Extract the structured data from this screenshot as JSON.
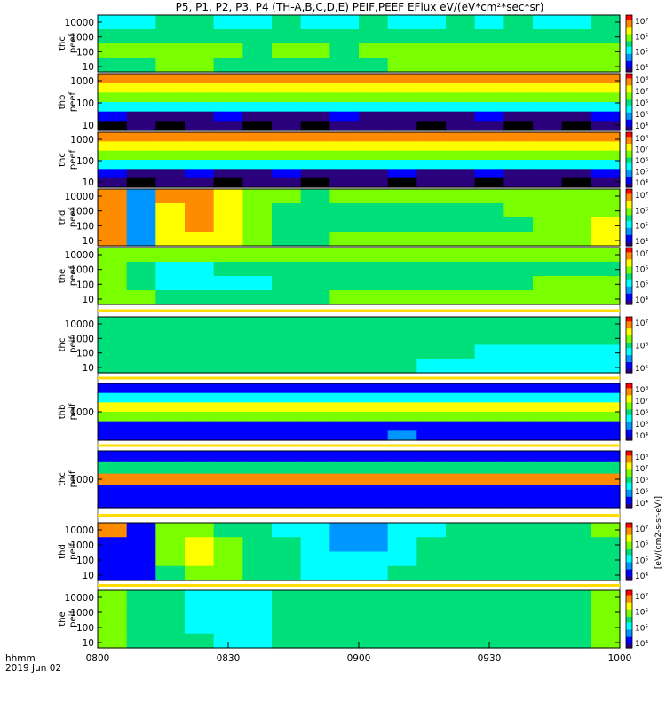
{
  "title": "P5, P1, P2, P3, P4 (TH-A,B,C,D,E) PEIF,PEEF EFlux eV/(eV*cm²*sec*sr)",
  "x_axis": {
    "time_label": "hhmm",
    "date_label": "2019 Jun 02",
    "tick_labels": [
      "0800",
      "0830",
      "0900",
      "0930",
      "1000"
    ]
  },
  "colorbar_unit_label": "[eV/(cm2-s-sr-eV)]",
  "chart_data": [
    {
      "type": "heatmap",
      "probe": "thc",
      "species": "peef",
      "ylabel": [
        "thc",
        "peef"
      ],
      "ytick_labels": [
        "10",
        "100",
        "1000",
        "10000"
      ],
      "colorbar_ticks": [
        "10⁴",
        "10⁵",
        "10⁶",
        "10⁷"
      ],
      "x_tick_labels": [
        "0800",
        "0830",
        "0900",
        "0930",
        "1000"
      ],
      "cells": [
        [
          4,
          4,
          5,
          5,
          4,
          4,
          5,
          4,
          4,
          5,
          4,
          4,
          5,
          4,
          5,
          4,
          4,
          5
        ],
        [
          5,
          5,
          5,
          5,
          5,
          5,
          5,
          5,
          5,
          5,
          5,
          5,
          5,
          5,
          5,
          5,
          5,
          5
        ],
        [
          6,
          6,
          6,
          6,
          6,
          5,
          6,
          6,
          5,
          6,
          6,
          6,
          6,
          6,
          6,
          6,
          6,
          6
        ],
        [
          5,
          5,
          6,
          6,
          5,
          5,
          5,
          5,
          5,
          5,
          6,
          6,
          6,
          6,
          6,
          6,
          6,
          6
        ]
      ]
    },
    {
      "type": "heatmap",
      "probe": "thb",
      "species": "peef",
      "ylabel": [
        "thb",
        "peef"
      ],
      "ytick_labels": [
        "10",
        "100",
        "1000"
      ],
      "colorbar_ticks": [
        "10⁴",
        "10⁵",
        "10⁶",
        "10⁷",
        "10⁸"
      ],
      "cells": [
        [
          8,
          8,
          8,
          8,
          8,
          8,
          8,
          8,
          8,
          8,
          8,
          8,
          8,
          8,
          8,
          8,
          8,
          8
        ],
        [
          7,
          7,
          7,
          7,
          7,
          7,
          7,
          7,
          7,
          7,
          7,
          7,
          7,
          7,
          7,
          7,
          7,
          7
        ],
        [
          6,
          6,
          6,
          6,
          6,
          6,
          6,
          6,
          6,
          6,
          6,
          6,
          6,
          6,
          6,
          6,
          6,
          6
        ],
        [
          4,
          4,
          4,
          4,
          4,
          4,
          4,
          4,
          4,
          4,
          4,
          4,
          4,
          4,
          4,
          4,
          4,
          4
        ],
        [
          2,
          1,
          1,
          1,
          2,
          1,
          1,
          1,
          2,
          1,
          1,
          1,
          1,
          2,
          1,
          1,
          1,
          2
        ],
        [
          0,
          1,
          0,
          1,
          1,
          0,
          1,
          0,
          1,
          1,
          1,
          0,
          1,
          1,
          0,
          1,
          0,
          1
        ]
      ]
    },
    {
      "type": "heatmap",
      "probe": "thc",
      "species": "peef",
      "ylabel": [
        "thc",
        "peef"
      ],
      "ytick_labels": [
        "10",
        "100",
        "1000"
      ],
      "colorbar_ticks": [
        "10⁴",
        "10⁵",
        "10⁶",
        "10⁷",
        "10⁸"
      ],
      "cells": [
        [
          8,
          8,
          8,
          8,
          8,
          8,
          8,
          8,
          8,
          8,
          8,
          8,
          8,
          8,
          8,
          8,
          8,
          8
        ],
        [
          7,
          7,
          7,
          7,
          7,
          7,
          7,
          7,
          7,
          7,
          7,
          7,
          7,
          7,
          7,
          7,
          7,
          7
        ],
        [
          6,
          6,
          6,
          6,
          6,
          6,
          6,
          6,
          6,
          6,
          6,
          6,
          6,
          6,
          6,
          6,
          6,
          6
        ],
        [
          4,
          4,
          4,
          4,
          4,
          4,
          4,
          4,
          4,
          4,
          4,
          4,
          4,
          4,
          4,
          4,
          4,
          4
        ],
        [
          2,
          1,
          1,
          2,
          1,
          1,
          2,
          1,
          1,
          1,
          2,
          1,
          1,
          2,
          1,
          1,
          1,
          2
        ],
        [
          1,
          0,
          1,
          1,
          0,
          1,
          1,
          0,
          1,
          1,
          0,
          1,
          1,
          0,
          1,
          1,
          0,
          1
        ]
      ]
    },
    {
      "type": "heatmap",
      "probe": "thd",
      "species": "peef",
      "ylabel": [
        "thd",
        "peef"
      ],
      "ytick_labels": [
        "10",
        "100",
        "1000",
        "10000"
      ],
      "colorbar_ticks": [
        "10⁴",
        "10⁵",
        "10⁶",
        "10⁷"
      ],
      "cells": [
        [
          8,
          3,
          8,
          8,
          7,
          6,
          6,
          5,
          6,
          6,
          6,
          6,
          6,
          6,
          6,
          6,
          6,
          6
        ],
        [
          8,
          3,
          7,
          8,
          7,
          6,
          5,
          5,
          5,
          5,
          5,
          5,
          5,
          5,
          6,
          6,
          6,
          6
        ],
        [
          8,
          3,
          7,
          8,
          7,
          6,
          5,
          5,
          5,
          5,
          5,
          5,
          5,
          5,
          5,
          6,
          6,
          7
        ],
        [
          8,
          3,
          7,
          7,
          7,
          6,
          5,
          5,
          6,
          6,
          6,
          6,
          6,
          6,
          6,
          6,
          6,
          7
        ]
      ]
    },
    {
      "type": "heatmap",
      "probe": "the",
      "species": "peef",
      "ylabel": [
        "the",
        "peef"
      ],
      "ytick_labels": [
        "10",
        "100",
        "1000",
        "10000"
      ],
      "colorbar_ticks": [
        "10⁴",
        "10⁵",
        "10⁶",
        "10⁷"
      ],
      "cells": [
        [
          6,
          6,
          6,
          6,
          6,
          6,
          6,
          6,
          6,
          6,
          6,
          6,
          6,
          6,
          6,
          6,
          6,
          6
        ],
        [
          6,
          5,
          4,
          4,
          5,
          5,
          5,
          5,
          5,
          5,
          5,
          5,
          5,
          5,
          5,
          5,
          5,
          5
        ],
        [
          6,
          5,
          4,
          4,
          4,
          4,
          5,
          5,
          5,
          5,
          5,
          5,
          5,
          5,
          5,
          6,
          6,
          6
        ],
        [
          6,
          6,
          5,
          5,
          5,
          5,
          5,
          5,
          6,
          6,
          6,
          6,
          6,
          6,
          6,
          6,
          6,
          6
        ]
      ]
    },
    {
      "type": "heatmap",
      "probe": "thc",
      "species": "peif",
      "ylabel": [
        "thc",
        "peif"
      ],
      "ytick_labels": [
        "10",
        "100",
        "1000",
        "10000"
      ],
      "colorbar_ticks": [
        "10⁵",
        "10⁶",
        "10⁷"
      ],
      "cells": [
        [
          5,
          5,
          5,
          5,
          5,
          5,
          5,
          5,
          5,
          5,
          5,
          5,
          5,
          5,
          5,
          5,
          5,
          5
        ],
        [
          5,
          5,
          5,
          5,
          5,
          5,
          5,
          5,
          5,
          5,
          5,
          5,
          5,
          5,
          5,
          5,
          5,
          5
        ],
        [
          5,
          5,
          5,
          5,
          5,
          5,
          5,
          5,
          5,
          5,
          5,
          5,
          5,
          4,
          4,
          4,
          4,
          4
        ],
        [
          5,
          5,
          5,
          5,
          5,
          5,
          5,
          5,
          5,
          5,
          5,
          4,
          4,
          4,
          4,
          4,
          4,
          4
        ]
      ]
    },
    {
      "type": "heatmap",
      "probe": "thb",
      "species": "peif",
      "ylabel": [
        "thb",
        "peif"
      ],
      "ytick_labels": [
        "1000"
      ],
      "colorbar_ticks": [
        "10⁴",
        "10⁵",
        "10⁶",
        "10⁷",
        "10⁸"
      ],
      "cells": [
        [
          2,
          2,
          2,
          2,
          2,
          2,
          2,
          2,
          2,
          2,
          2,
          2,
          2,
          2,
          2,
          2,
          2,
          2
        ],
        [
          4,
          4,
          4,
          4,
          4,
          4,
          4,
          4,
          4,
          4,
          4,
          4,
          4,
          4,
          4,
          4,
          4,
          4
        ],
        [
          7,
          7,
          7,
          7,
          7,
          7,
          7,
          7,
          7,
          7,
          7,
          7,
          7,
          7,
          7,
          7,
          7,
          7
        ],
        [
          6,
          6,
          6,
          6,
          6,
          6,
          6,
          6,
          6,
          6,
          6,
          6,
          6,
          6,
          6,
          6,
          6,
          6
        ],
        [
          2,
          2,
          2,
          2,
          2,
          2,
          2,
          2,
          2,
          2,
          2,
          2,
          2,
          2,
          2,
          2,
          2,
          2
        ],
        [
          2,
          2,
          2,
          2,
          2,
          2,
          2,
          2,
          2,
          2,
          3,
          2,
          2,
          2,
          2,
          2,
          2,
          2
        ]
      ]
    },
    {
      "type": "heatmap",
      "probe": "thc",
      "species": "peif",
      "ylabel": [
        "thc",
        "peif"
      ],
      "ytick_labels": [
        "1000"
      ],
      "colorbar_ticks": [
        "10⁴",
        "10⁵",
        "10⁶",
        "10⁷",
        "10⁸"
      ],
      "cells": [
        [
          2,
          2,
          2,
          2,
          2,
          2,
          2,
          2,
          2,
          2,
          2,
          2,
          2,
          2,
          2,
          2,
          2,
          2
        ],
        [
          5,
          5,
          5,
          5,
          5,
          5,
          5,
          5,
          5,
          5,
          5,
          5,
          5,
          5,
          5,
          5,
          5,
          5
        ],
        [
          8,
          8,
          8,
          8,
          8,
          8,
          8,
          8,
          8,
          8,
          8,
          8,
          8,
          8,
          8,
          8,
          8,
          8
        ],
        [
          2,
          2,
          2,
          2,
          2,
          2,
          2,
          2,
          2,
          2,
          2,
          2,
          2,
          2,
          2,
          2,
          2,
          2
        ],
        [
          2,
          2,
          2,
          2,
          2,
          2,
          2,
          2,
          2,
          2,
          2,
          2,
          2,
          2,
          2,
          2,
          2,
          2
        ]
      ]
    },
    {
      "type": "heatmap",
      "probe": "thd",
      "species": "peif",
      "ylabel": [
        "thd",
        "peif"
      ],
      "ytick_labels": [
        "10",
        "100",
        "1000",
        "10000"
      ],
      "colorbar_ticks": [
        "10⁴",
        "10⁵",
        "10⁶",
        "10⁷"
      ],
      "cells": [
        [
          8,
          2,
          6,
          6,
          5,
          5,
          4,
          4,
          3,
          3,
          4,
          4,
          5,
          5,
          5,
          5,
          5,
          6
        ],
        [
          2,
          2,
          6,
          7,
          6,
          5,
          5,
          4,
          3,
          3,
          4,
          5,
          5,
          5,
          5,
          5,
          5,
          5
        ],
        [
          2,
          2,
          6,
          7,
          6,
          5,
          5,
          4,
          4,
          4,
          4,
          5,
          5,
          5,
          5,
          5,
          5,
          5
        ],
        [
          2,
          2,
          5,
          6,
          6,
          5,
          5,
          4,
          4,
          4,
          5,
          5,
          5,
          5,
          5,
          5,
          5,
          5
        ]
      ]
    },
    {
      "type": "heatmap",
      "probe": "the",
      "species": "peif",
      "ylabel": [
        "the",
        "peif"
      ],
      "ytick_labels": [
        "10",
        "100",
        "1000",
        "10000"
      ],
      "colorbar_ticks": [
        "10⁴",
        "10⁵",
        "10⁶",
        "10⁷"
      ],
      "cells": [
        [
          6,
          5,
          5,
          4,
          4,
          4,
          5,
          5,
          5,
          5,
          5,
          5,
          5,
          5,
          5,
          5,
          5,
          6
        ],
        [
          6,
          5,
          5,
          4,
          4,
          4,
          5,
          5,
          5,
          5,
          5,
          5,
          5,
          5,
          5,
          5,
          5,
          6
        ],
        [
          6,
          5,
          5,
          4,
          4,
          4,
          5,
          5,
          5,
          5,
          5,
          5,
          5,
          5,
          5,
          5,
          5,
          6
        ],
        [
          6,
          5,
          5,
          5,
          4,
          4,
          5,
          5,
          5,
          5,
          5,
          5,
          5,
          5,
          5,
          5,
          5,
          6
        ]
      ]
    }
  ]
}
